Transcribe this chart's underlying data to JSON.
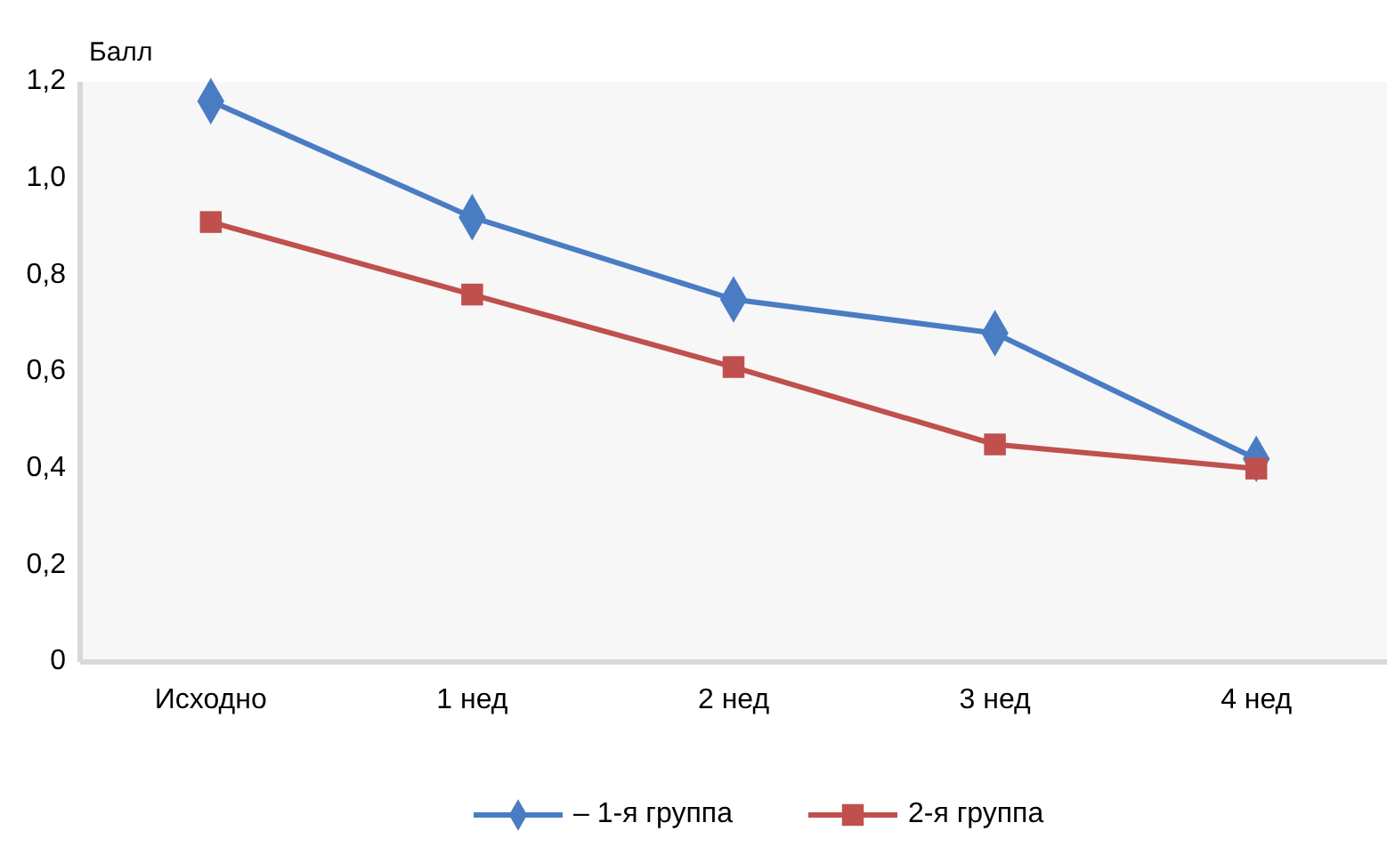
{
  "chart_data": {
    "type": "line",
    "ylabel": "Балл",
    "categories": [
      "Исходно",
      "1 нед",
      "2 нед",
      "3 нед",
      "4 нед"
    ],
    "series": [
      {
        "name": "– 1-я группа",
        "color": "#4a7cc4",
        "marker": "diamond",
        "values": [
          1.16,
          0.92,
          0.75,
          0.68,
          0.42
        ]
      },
      {
        "name": "2-я группа",
        "color": "#c0504d",
        "marker": "square",
        "values": [
          0.91,
          0.76,
          0.61,
          0.45,
          0.4
        ]
      }
    ],
    "ylim": [
      0,
      1.2
    ],
    "yticks": [
      {
        "value": 0,
        "label": "0"
      },
      {
        "value": 0.2,
        "label": "0,2"
      },
      {
        "value": 0.4,
        "label": "0,4"
      },
      {
        "value": 0.6,
        "label": "0,6"
      },
      {
        "value": 0.8,
        "label": "0,8"
      },
      {
        "value": 1,
        "label": "1,0"
      },
      {
        "value": 1.2,
        "label": "1,2"
      }
    ],
    "grid": false,
    "legend": "bottom"
  }
}
